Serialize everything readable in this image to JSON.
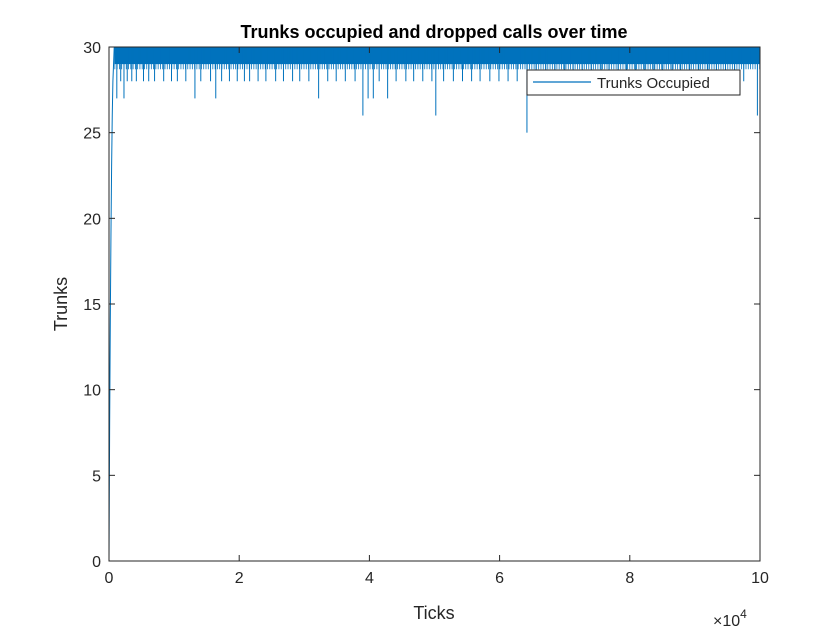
{
  "chart_data": {
    "type": "line",
    "title": "Trunks occupied and dropped calls over time",
    "xlabel": "Ticks",
    "ylabel": "Trunks",
    "xlim": [
      0,
      100000
    ],
    "ylim": [
      0,
      30
    ],
    "xticks": [
      0,
      20000,
      40000,
      60000,
      80000,
      100000
    ],
    "xtick_labels": [
      "0",
      "2",
      "4",
      "6",
      "8",
      "10"
    ],
    "yticks": [
      0,
      5,
      10,
      15,
      20,
      25,
      30
    ],
    "ytick_labels": [
      "0",
      "5",
      "10",
      "15",
      "20",
      "25",
      "30"
    ],
    "x_exponent_base": "×10",
    "x_exponent_power": "4",
    "grid": false,
    "legend_position": "top-right",
    "series_color": "#0072bd",
    "series": [
      {
        "name": "Trunks Occupied",
        "description": "Rises from 0 to ~30 within first few hundred ticks, then fluctuates between about 25 and 30 for the rest of the run",
        "ramp": {
          "x": [
            0,
            100,
            200,
            300,
            400,
            500,
            600,
            700,
            800
          ],
          "y": [
            0,
            8,
            14,
            19,
            23,
            26,
            28,
            29,
            30
          ]
        },
        "baseline_high": 30,
        "baseline_low": 29,
        "dips": [
          [
            1200,
            27
          ],
          [
            1800,
            28
          ],
          [
            2300,
            27
          ],
          [
            2800,
            28
          ],
          [
            3500,
            28
          ],
          [
            4200,
            28
          ],
          [
            5300,
            28
          ],
          [
            6100,
            28
          ],
          [
            7000,
            28
          ],
          [
            8400,
            28
          ],
          [
            9600,
            28
          ],
          [
            10500,
            28
          ],
          [
            11800,
            28
          ],
          [
            13200,
            27
          ],
          [
            14100,
            28
          ],
          [
            15600,
            28
          ],
          [
            16400,
            27
          ],
          [
            17300,
            28
          ],
          [
            18500,
            28
          ],
          [
            19700,
            28
          ],
          [
            20800,
            28
          ],
          [
            21600,
            28
          ],
          [
            22900,
            28
          ],
          [
            24100,
            28
          ],
          [
            25600,
            28
          ],
          [
            26800,
            28
          ],
          [
            28200,
            28
          ],
          [
            29300,
            28
          ],
          [
            30700,
            28
          ],
          [
            32200,
            27
          ],
          [
            33600,
            28
          ],
          [
            34900,
            28
          ],
          [
            36300,
            28
          ],
          [
            37800,
            28
          ],
          [
            39000,
            26
          ],
          [
            39800,
            27
          ],
          [
            40600,
            27
          ],
          [
            41500,
            28
          ],
          [
            42800,
            27
          ],
          [
            44100,
            28
          ],
          [
            45600,
            28
          ],
          [
            46800,
            28
          ],
          [
            48200,
            28
          ],
          [
            49600,
            28
          ],
          [
            50200,
            26
          ],
          [
            51400,
            28
          ],
          [
            52900,
            28
          ],
          [
            54300,
            28
          ],
          [
            55700,
            28
          ],
          [
            57000,
            28
          ],
          [
            58500,
            28
          ],
          [
            59900,
            28
          ],
          [
            61300,
            28
          ],
          [
            62700,
            28
          ],
          [
            64200,
            25
          ],
          [
            65600,
            28
          ],
          [
            67100,
            28
          ],
          [
            68500,
            28
          ],
          [
            70000,
            28
          ],
          [
            71300,
            28
          ],
          [
            72700,
            28
          ],
          [
            74100,
            28
          ],
          [
            75600,
            28
          ],
          [
            76800,
            28
          ],
          [
            78200,
            28
          ],
          [
            79500,
            28
          ],
          [
            80900,
            28
          ],
          [
            82300,
            28
          ],
          [
            83700,
            28
          ],
          [
            85000,
            28
          ],
          [
            86500,
            28
          ],
          [
            87800,
            28
          ],
          [
            89200,
            28
          ],
          [
            90600,
            28
          ],
          [
            92000,
            28
          ],
          [
            93300,
            28
          ],
          [
            94700,
            28
          ],
          [
            96100,
            28
          ],
          [
            97500,
            28
          ],
          [
            99600,
            26
          ]
        ]
      }
    ]
  }
}
